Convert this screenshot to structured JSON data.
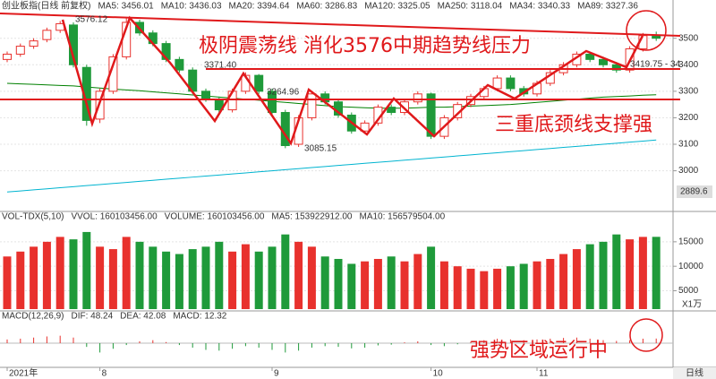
{
  "chart_data": [
    {
      "type": "candlestick",
      "header": [
        {
          "text": "创业板指(日线 前复权)",
          "color": "#333333"
        },
        {
          "text": "MA5: 3456.01",
          "color": "#333333"
        },
        {
          "text": "MA10: 3436.03",
          "color": "#c89b00"
        },
        {
          "text": "MA20: 3394.64",
          "color": "#b000b0"
        },
        {
          "text": "MA60: 3286.83",
          "color": "#008000"
        },
        {
          "text": "MA120: 3325.05",
          "color": "#555555"
        },
        {
          "text": "MA250: 3118.04",
          "color": "#00a8c8"
        },
        {
          "text": "MA34: 3340.33",
          "color": "#333333"
        },
        {
          "text": "MA89: 3327.36",
          "color": "#777777"
        }
      ],
      "annotations": [
        "3576.12",
        "3371.40",
        "3264.96",
        "3085.15",
        "3419.75 - 34",
        "2889.6",
        "极阴震荡线  消化3576中期趋势线压力",
        "三重底颈线支撑强"
      ],
      "categories": [
        null,
        null,
        null,
        null,
        null,
        null,
        null,
        null,
        null,
        null,
        null,
        null,
        null,
        null,
        null,
        null,
        null,
        null,
        null,
        null,
        null,
        null,
        null,
        null,
        null,
        null,
        null,
        null,
        null,
        null,
        null,
        null,
        null,
        null,
        null,
        null,
        null,
        null,
        null,
        null,
        null,
        null,
        null,
        null,
        null,
        null,
        null,
        null,
        null,
        null
      ],
      "open": [
        3420,
        3440,
        3470,
        3495,
        3530,
        3550,
        3390,
        3195,
        3300,
        3430,
        3560,
        3520,
        3480,
        3420,
        3380,
        3300,
        3270,
        3230,
        3300,
        3360,
        3300,
        3220,
        3100,
        3200,
        3290,
        3260,
        3210,
        3150,
        3180,
        3240,
        3220,
        3260,
        3290,
        3130,
        3200,
        3250,
        3280,
        3310,
        3350,
        3310,
        3290,
        3330,
        3370,
        3400,
        3440,
        3420,
        3400,
        3380,
        3460,
        3510
      ],
      "high": [
        3450,
        3480,
        3500,
        3540,
        3565,
        3560,
        3400,
        3310,
        3440,
        3576.12,
        3570,
        3530,
        3490,
        3430,
        3390,
        3310,
        3280,
        3310,
        3371.4,
        3365,
        3310,
        3230,
        3210,
        3300,
        3300,
        3270,
        3220,
        3190,
        3250,
        3250,
        3270,
        3300,
        3295,
        3210,
        3260,
        3290,
        3320,
        3360,
        3360,
        3320,
        3340,
        3380,
        3410,
        3450,
        3450,
        3430,
        3410,
        3470,
        3520,
        3525
      ],
      "low": [
        3410,
        3430,
        3460,
        3485,
        3520,
        3390,
        3170,
        3180,
        3290,
        3420,
        3510,
        3470,
        3410,
        3370,
        3290,
        3260,
        3220,
        3220,
        3290,
        3290,
        3210,
        3085.15,
        3090,
        3190,
        3250,
        3200,
        3140,
        3140,
        3170,
        3210,
        3210,
        3250,
        3120,
        3120,
        3190,
        3240,
        3270,
        3300,
        3300,
        3280,
        3280,
        3320,
        3360,
        3390,
        3410,
        3390,
        3370,
        3370,
        3450,
        3490
      ],
      "close": [
        3440,
        3470,
        3490,
        3530,
        3555,
        3400,
        3190,
        3300,
        3430,
        3560,
        3520,
        3480,
        3420,
        3380,
        3300,
        3270,
        3230,
        3300,
        3360,
        3300,
        3220,
        3095,
        3200,
        3290,
        3260,
        3210,
        3150,
        3180,
        3240,
        3220,
        3260,
        3290,
        3130,
        3200,
        3250,
        3280,
        3310,
        3350,
        3310,
        3290,
        3330,
        3370,
        3400,
        3440,
        3420,
        3400,
        3380,
        3460,
        3510,
        3500
      ],
      "series": [
        {
          "name": "MA60",
          "color": "#008000",
          "values": [
            3330,
            3328,
            3326,
            3324,
            3322,
            3320,
            3316,
            3312,
            3308,
            3305,
            3302,
            3298,
            3294,
            3290,
            3286,
            3282,
            3278,
            3274,
            3270,
            3266,
            3262,
            3258,
            3254,
            3250,
            3246,
            3242,
            3240,
            3238,
            3236,
            3236,
            3236,
            3238,
            3240,
            3240,
            3242,
            3244,
            3246,
            3248,
            3250,
            3254,
            3258,
            3262,
            3266,
            3270,
            3274,
            3278,
            3280,
            3282,
            3285,
            3287
          ]
        },
        {
          "name": "MA250",
          "color": "#00b4d0",
          "values": [
            2920,
            2924,
            2928,
            2932,
            2936,
            2940,
            2944,
            2948,
            2952,
            2956,
            2960,
            2964,
            2968,
            2972,
            2976,
            2980,
            2984,
            2988,
            2992,
            2996,
            3000,
            3004,
            3008,
            3012,
            3016,
            3020,
            3024,
            3028,
            3032,
            3036,
            3040,
            3044,
            3048,
            3052,
            3056,
            3060,
            3064,
            3068,
            3072,
            3076,
            3080,
            3084,
            3088,
            3092,
            3096,
            3100,
            3104,
            3108,
            3112,
            3116
          ]
        }
      ],
      "up_color": "#e8312d",
      "down_color": "#1f9a3a",
      "ylim": [
        2860,
        3597
      ],
      "yticks": [
        3000,
        3100,
        3200,
        3300,
        3400,
        3500
      ],
      "xticks": [
        {
          "value": 0,
          "label": "2021年"
        },
        {
          "value": 7,
          "label": "8"
        },
        {
          "value": 20,
          "label": "9"
        },
        {
          "value": 32,
          "label": "10"
        },
        {
          "value": 40,
          "label": "11"
        }
      ],
      "grid": true
    },
    {
      "type": "bar",
      "header": [
        {
          "text": "VOL-TDX(5,10)",
          "color": "#333333"
        },
        {
          "text": "VVOL: 160103456.00",
          "color": "#333333"
        },
        {
          "text": "VOLUME: 160103456.00",
          "color": "#2a5bd7"
        },
        {
          "text": "MA5: 153922912.00",
          "color": "#333333"
        },
        {
          "text": "MA10: 156579504.00",
          "color": "#c89b00"
        }
      ],
      "unit_label": "X1万",
      "values": [
        12000,
        13000,
        14000,
        15000,
        16000,
        15500,
        17000,
        14000,
        13500,
        16000,
        15000,
        14000,
        13000,
        12500,
        13500,
        14000,
        15000,
        13000,
        14500,
        13000,
        14000,
        16500,
        15000,
        14000,
        12000,
        11500,
        10500,
        11000,
        11500,
        12000,
        11000,
        12500,
        14000,
        11000,
        10000,
        9500,
        9000,
        9500,
        10000,
        10500,
        11000,
        11500,
        12500,
        13500,
        14500,
        15000,
        16500,
        15500,
        16000,
        16010
      ],
      "ylim": [
        1250,
        19000
      ],
      "yticks": [
        5000,
        10000,
        15000
      ],
      "grid": true
    },
    {
      "type": "bar",
      "header": [
        {
          "text": "MACD(12,26,9)",
          "color": "#333333"
        },
        {
          "text": "DIF: 48.24",
          "color": "#333333"
        },
        {
          "text": "DEA: 42.08",
          "color": "#c89b00"
        },
        {
          "text": "MACD: 12.32",
          "color": "#b000b0"
        }
      ],
      "annotations": [
        "强势区域运行中"
      ],
      "values": [
        10,
        12,
        15,
        18,
        20,
        15,
        -10,
        -25,
        -15,
        -5,
        5,
        8,
        3,
        -5,
        -12,
        -18,
        -20,
        -15,
        -8,
        -12,
        -18,
        -25,
        -20,
        -12,
        -8,
        -10,
        -14,
        -12,
        -6,
        -4,
        2,
        5,
        -5,
        -8,
        -3,
        4,
        8,
        12,
        10,
        8,
        10,
        12,
        14,
        15,
        12,
        8,
        6,
        8,
        12,
        12.32
      ],
      "up_color": "#e8312d",
      "down_color": "#1f9a3a",
      "ylim": [
        -60,
        60
      ]
    }
  ],
  "tab": "日线"
}
